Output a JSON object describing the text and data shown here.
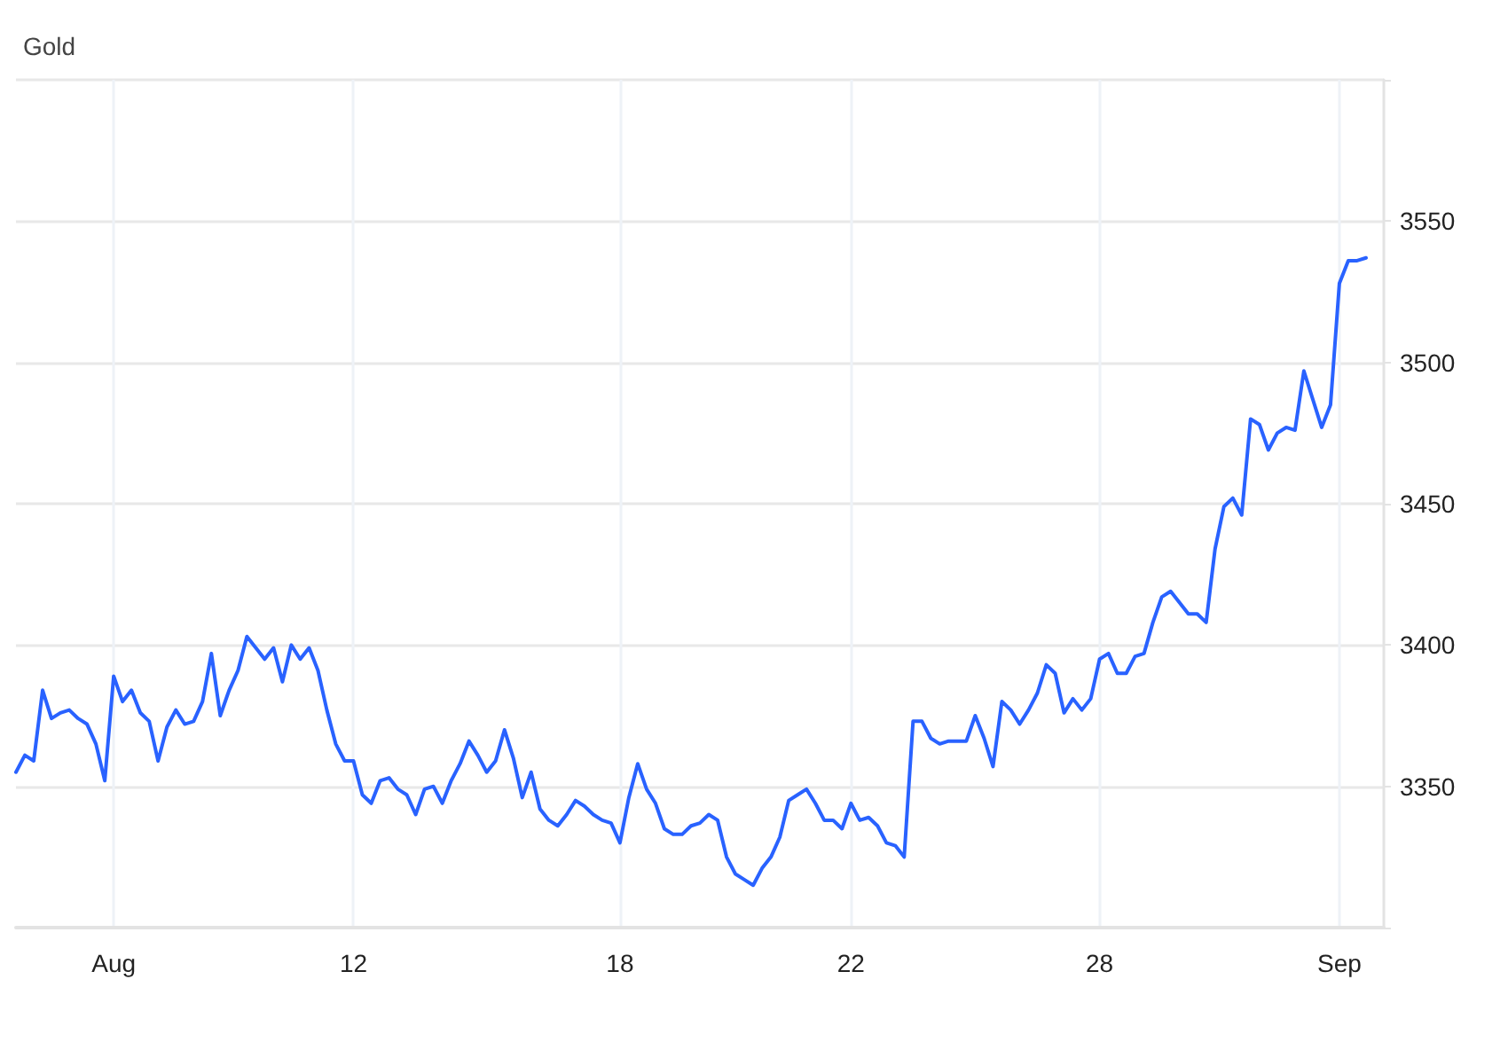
{
  "chart_data": {
    "type": "line",
    "title": "Gold",
    "categories": [
      null,
      null,
      null,
      null,
      null,
      null,
      null,
      null,
      null,
      null,
      null,
      "Aug",
      null,
      null,
      null,
      null,
      null,
      null,
      null,
      null,
      null,
      null,
      null,
      null,
      null,
      null,
      null,
      null,
      null,
      null,
      null,
      null,
      null,
      null,
      null,
      null,
      null,
      null,
      "12",
      null,
      null,
      null,
      null,
      null,
      null,
      null,
      null,
      null,
      null,
      null,
      null,
      null,
      null,
      null,
      null,
      null,
      null,
      null,
      null,
      null,
      null,
      null,
      null,
      null,
      null,
      null,
      null,
      null,
      "18",
      null,
      null,
      null,
      null,
      null,
      null,
      null,
      null,
      null,
      null,
      null,
      null,
      null,
      null,
      null,
      null,
      null,
      null,
      null,
      null,
      null,
      null,
      null,
      null,
      null,
      "22",
      null,
      null,
      null,
      null,
      null,
      null,
      null,
      null,
      null,
      null,
      null,
      null,
      null,
      null,
      null,
      null,
      null,
      null,
      null,
      null,
      null,
      null,
      null,
      null,
      null,
      null,
      null,
      "28",
      null,
      null,
      null,
      null,
      null,
      null,
      null,
      null,
      null,
      null,
      null,
      null,
      null,
      null,
      null,
      null,
      null,
      null,
      null,
      null,
      null,
      null,
      null,
      null,
      null,
      null,
      "Sep",
      null,
      null,
      null,
      null,
      null
    ],
    "values": [
      3355,
      3361,
      3359,
      3384,
      3374,
      3376,
      3377,
      3374,
      3372,
      3365,
      3352,
      3389,
      3380,
      3384,
      3376,
      3373,
      3359,
      3371,
      3377,
      3372,
      3373,
      3380,
      3397,
      3375,
      3384,
      3391,
      3403,
      3399,
      3395,
      3399,
      3387,
      3400,
      3395,
      3399,
      3391,
      3377,
      3365,
      3359,
      3359,
      3347,
      3344,
      3352,
      3353,
      3349,
      3347,
      3340,
      3349,
      3350,
      3344,
      3352,
      3358,
      3366,
      3361,
      3355,
      3359,
      3370,
      3360,
      3346,
      3355,
      3342,
      3338,
      3336,
      3340,
      3345,
      3343,
      3340,
      3338,
      3337,
      3330,
      3346,
      3358,
      3349,
      3344,
      3335,
      3333,
      3333,
      3336,
      3337,
      3340,
      3338,
      3325,
      3319,
      3317,
      3315,
      3321,
      3325,
      3332,
      3345,
      3347,
      3349,
      3344,
      3338,
      3338,
      3335,
      3344,
      3338,
      3339,
      3336,
      3330,
      3329,
      3325,
      3373,
      3373,
      3367,
      3365,
      3366,
      3366,
      3366,
      3375,
      3367,
      3357,
      3380,
      3377,
      3372,
      3377,
      3383,
      3393,
      3390,
      3376,
      3381,
      3377,
      3381,
      3395,
      3397,
      3390,
      3390,
      3396,
      3397,
      3408,
      3417,
      3419,
      3415,
      3411,
      3411,
      3408,
      3434,
      3449,
      3452,
      3446,
      3480,
      3478,
      3469,
      3475,
      3477,
      3476,
      3497,
      3487,
      3477,
      3485,
      3528,
      3536,
      3536,
      3537,
      null,
      null
    ],
    "color": "#2962ff",
    "ylim": [
      3300,
      3600
    ],
    "yticks": [
      {
        "value": 3300,
        "label": null
      },
      3350,
      3400,
      3450,
      3500,
      3550,
      {
        "value": 3600,
        "label": null
      }
    ],
    "grid": true
  }
}
